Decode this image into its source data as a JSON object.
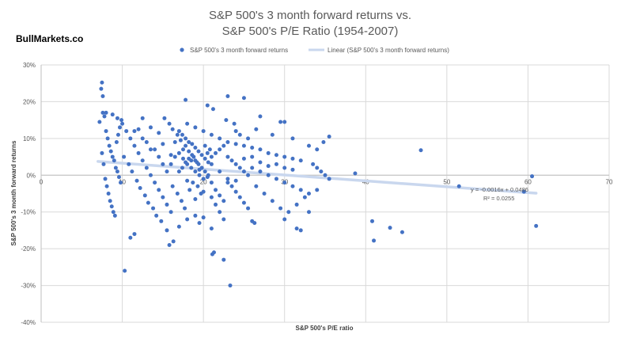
{
  "watermark": "BullMarkets.co",
  "chart_data": {
    "type": "scatter",
    "title": "S&P 500's 3 month forward returns vs.",
    "subtitle": "S&P 500's P/E Ratio (1954-2007)",
    "xlabel": "S&P 500's P/E ratio",
    "ylabel": "S&P 500's 3 month forward returns",
    "xlim": [
      0,
      70
    ],
    "ylim": [
      -0.4,
      0.3
    ],
    "x_ticks": [
      "0",
      "10",
      "20",
      "30",
      "40",
      "50",
      "60",
      "70"
    ],
    "y_ticks": [
      "30%",
      "20%",
      "10%",
      "0%",
      "-10%",
      "-20%",
      "-30%",
      "-40%"
    ],
    "legend_position": "top",
    "grid": true,
    "colors": {
      "points": "#4472C4",
      "trendline": "#C9D7EE",
      "grid": "#D9D9D9",
      "axis": "#BFBFBF"
    },
    "series": [
      {
        "name": "S&P 500's 3 month forward returns",
        "points": [
          [
            7.2,
            0.145
          ],
          [
            7.4,
            0.235
          ],
          [
            7.5,
            0.252
          ],
          [
            7.6,
            0.215
          ],
          [
            7.8,
            0.16
          ],
          [
            8.0,
            0.12
          ],
          [
            8.2,
            0.1
          ],
          [
            8.4,
            0.08
          ],
          [
            8.6,
            0.065
          ],
          [
            8.8,
            0.05
          ],
          [
            9.0,
            0.04
          ],
          [
            9.2,
            0.02
          ],
          [
            9.4,
            0.01
          ],
          [
            9.6,
            -0.005
          ],
          [
            9.8,
            -0.02
          ],
          [
            7.5,
            0.06
          ],
          [
            7.7,
            0.03
          ],
          [
            7.9,
            -0.01
          ],
          [
            8.1,
            -0.03
          ],
          [
            8.3,
            -0.05
          ],
          [
            8.5,
            -0.07
          ],
          [
            8.7,
            -0.085
          ],
          [
            8.9,
            -0.1
          ],
          [
            9.1,
            -0.11
          ],
          [
            9.3,
            0.09
          ],
          [
            9.5,
            0.11
          ],
          [
            9.7,
            0.13
          ],
          [
            9.9,
            0.15
          ],
          [
            7.6,
            0.17
          ],
          [
            8.0,
            0.17
          ],
          [
            8.8,
            0.165
          ],
          [
            9.4,
            0.155
          ],
          [
            10.0,
            0.14
          ],
          [
            10.5,
            0.12
          ],
          [
            11.0,
            0.1
          ],
          [
            11.5,
            0.08
          ],
          [
            12.0,
            0.06
          ],
          [
            12.5,
            0.04
          ],
          [
            13.0,
            0.02
          ],
          [
            13.5,
            0.0
          ],
          [
            14.0,
            -0.02
          ],
          [
            14.5,
            -0.04
          ],
          [
            15.0,
            -0.06
          ],
          [
            15.5,
            -0.08
          ],
          [
            16.0,
            -0.1
          ],
          [
            10.2,
            0.05
          ],
          [
            10.8,
            0.03
          ],
          [
            11.2,
            0.01
          ],
          [
            11.8,
            -0.015
          ],
          [
            12.2,
            -0.035
          ],
          [
            12.8,
            -0.055
          ],
          [
            13.2,
            -0.075
          ],
          [
            13.8,
            -0.09
          ],
          [
            14.2,
            -0.11
          ],
          [
            14.8,
            -0.125
          ],
          [
            15.2,
            0.155
          ],
          [
            15.8,
            0.14
          ],
          [
            16.2,
            0.125
          ],
          [
            16.8,
            0.11
          ],
          [
            17.2,
            0.095
          ],
          [
            17.8,
            0.08
          ],
          [
            18.2,
            0.065
          ],
          [
            18.8,
            0.05
          ],
          [
            19.2,
            0.035
          ],
          [
            19.8,
            0.02
          ],
          [
            10.3,
            -0.26
          ],
          [
            11.0,
            -0.17
          ],
          [
            11.5,
            -0.16
          ],
          [
            12.5,
            0.155
          ],
          [
            13.5,
            0.13
          ],
          [
            14.5,
            0.115
          ],
          [
            16.5,
            0.09
          ],
          [
            17.5,
            0.07
          ],
          [
            18.5,
            0.04
          ],
          [
            19.5,
            0.015
          ],
          [
            20.5,
            -0.005
          ],
          [
            21.0,
            -0.02
          ],
          [
            21.5,
            -0.04
          ],
          [
            22.0,
            -0.055
          ],
          [
            22.5,
            -0.07
          ],
          [
            16.0,
            0.03
          ],
          [
            16.5,
            0.05
          ],
          [
            17.0,
            0.06
          ],
          [
            17.5,
            0.045
          ],
          [
            18.0,
            0.03
          ],
          [
            18.5,
            0.02
          ],
          [
            19.0,
            0.01
          ],
          [
            19.5,
            0.0
          ],
          [
            20.0,
            -0.01
          ],
          [
            20.5,
            0.06
          ],
          [
            16.2,
            -0.03
          ],
          [
            16.8,
            -0.05
          ],
          [
            17.3,
            -0.07
          ],
          [
            17.7,
            -0.09
          ],
          [
            18.3,
            -0.04
          ],
          [
            18.7,
            -0.02
          ],
          [
            19.3,
            -0.03
          ],
          [
            19.7,
            -0.05
          ],
          [
            20.2,
            0.08
          ],
          [
            20.8,
            0.07
          ],
          [
            17.0,
            0.12
          ],
          [
            17.4,
            0.11
          ],
          [
            17.8,
            0.1
          ],
          [
            18.2,
            0.09
          ],
          [
            18.6,
            0.085
          ],
          [
            19.0,
            0.075
          ],
          [
            19.4,
            0.065
          ],
          [
            19.8,
            0.055
          ],
          [
            20.2,
            0.045
          ],
          [
            20.6,
            0.035
          ],
          [
            17.0,
            0.01
          ],
          [
            17.4,
            0.02
          ],
          [
            17.8,
            0.035
          ],
          [
            18.2,
            0.045
          ],
          [
            18.6,
            0.055
          ],
          [
            19.0,
            0.04
          ],
          [
            19.4,
            0.03
          ],
          [
            19.8,
            0.02
          ],
          [
            20.2,
            0.01
          ],
          [
            20.6,
            0.0
          ],
          [
            21.0,
            0.05
          ],
          [
            21.5,
            0.06
          ],
          [
            22.0,
            0.07
          ],
          [
            22.5,
            0.08
          ],
          [
            23.0,
            0.05
          ],
          [
            23.5,
            0.04
          ],
          [
            24.0,
            0.03
          ],
          [
            24.5,
            0.02
          ],
          [
            25.0,
            0.01
          ],
          [
            25.5,
            0.0
          ],
          [
            21.0,
            -0.06
          ],
          [
            21.5,
            -0.08
          ],
          [
            22.0,
            -0.1
          ],
          [
            22.5,
            -0.12
          ],
          [
            23.0,
            -0.02
          ],
          [
            23.5,
            -0.03
          ],
          [
            24.0,
            -0.045
          ],
          [
            24.5,
            -0.06
          ],
          [
            25.0,
            -0.075
          ],
          [
            25.5,
            -0.09
          ],
          [
            20.5,
            0.19
          ],
          [
            21.2,
            0.18
          ],
          [
            17.8,
            0.205
          ],
          [
            23.0,
            0.215
          ],
          [
            25.0,
            0.21
          ],
          [
            18.0,
            0.14
          ],
          [
            19.0,
            0.13
          ],
          [
            20.0,
            0.12
          ],
          [
            21.0,
            0.11
          ],
          [
            22.0,
            0.1
          ],
          [
            23.0,
            0.09
          ],
          [
            24.0,
            0.085
          ],
          [
            25.0,
            0.08
          ],
          [
            26.0,
            0.075
          ],
          [
            27.0,
            0.07
          ],
          [
            28.0,
            0.06
          ],
          [
            29.0,
            0.055
          ],
          [
            30.0,
            0.05
          ],
          [
            31.0,
            0.045
          ],
          [
            32.0,
            0.04
          ],
          [
            26.0,
            0.02
          ],
          [
            27.0,
            0.01
          ],
          [
            28.0,
            0.0
          ],
          [
            29.0,
            -0.01
          ],
          [
            30.0,
            -0.02
          ],
          [
            31.0,
            -0.03
          ],
          [
            32.0,
            -0.04
          ],
          [
            33.0,
            -0.05
          ],
          [
            26.5,
            -0.03
          ],
          [
            27.5,
            -0.05
          ],
          [
            28.5,
            -0.07
          ],
          [
            29.5,
            -0.09
          ],
          [
            30.5,
            -0.1
          ],
          [
            31.5,
            -0.08
          ],
          [
            32.5,
            -0.06
          ],
          [
            33.5,
            0.03
          ],
          [
            34.0,
            0.02
          ],
          [
            34.5,
            0.01
          ],
          [
            35.0,
            0.0
          ],
          [
            35.5,
            -0.01
          ],
          [
            27.0,
            0.16
          ],
          [
            29.5,
            0.145
          ],
          [
            30.0,
            0.145
          ],
          [
            26.5,
            0.125
          ],
          [
            28.5,
            0.11
          ],
          [
            31.0,
            0.1
          ],
          [
            33.0,
            0.08
          ],
          [
            34.0,
            0.07
          ],
          [
            35.5,
            0.105
          ],
          [
            34.8,
            0.09
          ],
          [
            21.0,
            -0.145
          ],
          [
            21.3,
            -0.21
          ],
          [
            21.1,
            -0.215
          ],
          [
            22.5,
            -0.23
          ],
          [
            23.3,
            -0.3
          ],
          [
            17.0,
            -0.14
          ],
          [
            18.0,
            -0.12
          ],
          [
            19.0,
            -0.11
          ],
          [
            19.5,
            -0.13
          ],
          [
            20.0,
            -0.115
          ],
          [
            15.5,
            -0.15
          ],
          [
            15.8,
            -0.19
          ],
          [
            16.3,
            -0.18
          ],
          [
            26.0,
            -0.125
          ],
          [
            26.3,
            -0.13
          ],
          [
            30.0,
            -0.12
          ],
          [
            31.5,
            -0.145
          ],
          [
            32.0,
            -0.15
          ],
          [
            33.0,
            -0.1
          ],
          [
            34.0,
            -0.04
          ],
          [
            38.7,
            0.005
          ],
          [
            40.8,
            -0.125
          ],
          [
            41.0,
            -0.178
          ],
          [
            43.0,
            -0.143
          ],
          [
            44.5,
            -0.155
          ],
          [
            46.8,
            0.068
          ],
          [
            51.5,
            -0.03
          ],
          [
            59.5,
            -0.045
          ],
          [
            60.5,
            -0.003
          ],
          [
            61.0,
            -0.138
          ],
          [
            24.0,
            0.12
          ],
          [
            24.5,
            0.11
          ],
          [
            25.5,
            0.1
          ],
          [
            22.8,
            0.15
          ],
          [
            23.8,
            0.14
          ],
          [
            14.0,
            0.07
          ],
          [
            14.5,
            0.05
          ],
          [
            15.0,
            0.03
          ],
          [
            15.5,
            0.01
          ],
          [
            13.0,
            0.09
          ],
          [
            13.5,
            0.07
          ],
          [
            12.5,
            0.1
          ],
          [
            11.5,
            0.12
          ],
          [
            12.0,
            0.125
          ],
          [
            16.0,
            0.055
          ],
          [
            15.0,
            0.085
          ],
          [
            18.0,
            -0.015
          ],
          [
            19.0,
            -0.065
          ],
          [
            20.0,
            -0.045
          ],
          [
            21.0,
            0.03
          ],
          [
            22.0,
            0.01
          ],
          [
            23.0,
            -0.01
          ],
          [
            24.0,
            -0.015
          ],
          [
            25.0,
            0.045
          ],
          [
            26.0,
            0.05
          ],
          [
            27.0,
            0.035
          ],
          [
            28.0,
            0.025
          ],
          [
            29.0,
            0.03
          ],
          [
            30.0,
            0.02
          ],
          [
            31.0,
            0.015
          ]
        ]
      }
    ],
    "trendline": {
      "name": "Linear (S&P 500's 3 month forward returns)",
      "x_range": [
        7,
        61
      ],
      "slope": -0.0016,
      "intercept": 0.0486,
      "equation": "y = -0.0016x + 0.0486",
      "r2": "R² = 0.0255"
    }
  }
}
